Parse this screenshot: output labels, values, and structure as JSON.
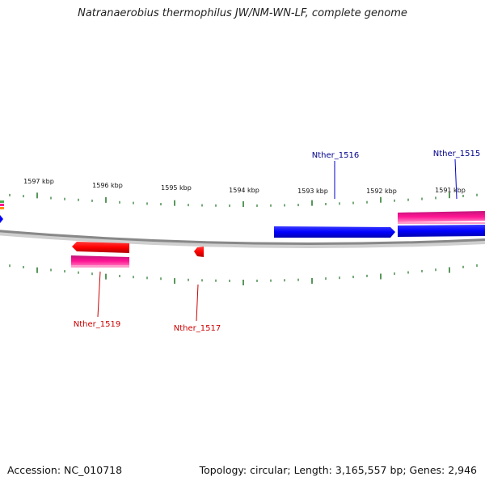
{
  "title": "Natranaerobius thermophilus JW/NM-WN-LF, complete genome",
  "footer": {
    "accession": "Accession: NC_010718",
    "summary": "Topology: circular; Length: 3,165,557 bp; Genes: 2,946"
  },
  "scale_labels": [
    "1597 kbp",
    "1596 kbp",
    "1595 kbp",
    "1594 kbp",
    "1593 kbp",
    "1592 kbp",
    "1591 kbp"
  ],
  "gene_labels": {
    "nther_1516": "Nther_1516",
    "nther_1515": "Nther_1515",
    "nther_1519": "Nther_1519",
    "nther_1517": "Nther_1517"
  },
  "colors": {
    "forward_gene": "#0000ff",
    "reverse_gene": "#ff0000",
    "magenta_feature": "#ff1493",
    "tick": "#2e7d32",
    "backbone": "#888888",
    "forward_label": "#00008b",
    "reverse_label": "#cc0000"
  }
}
